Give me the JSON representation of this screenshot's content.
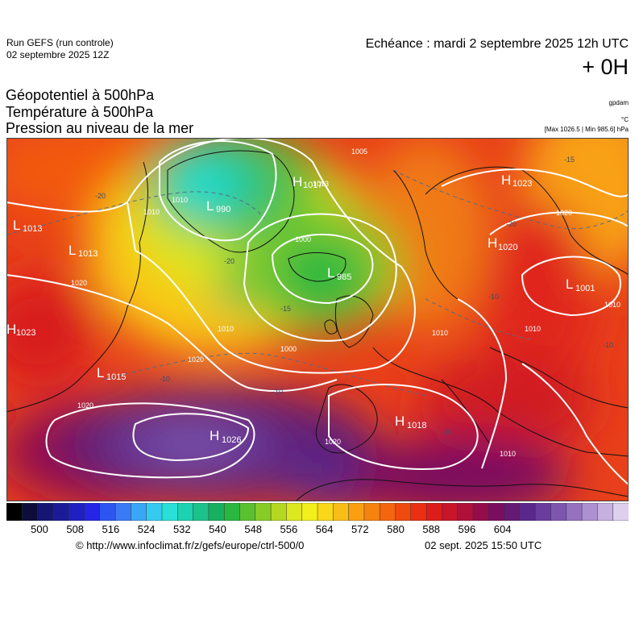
{
  "header": {
    "run_title": "Run GEFS (run controle)",
    "run_date": "02 septembre 2025 12Z",
    "echeance": "Echéance : mardi 2 septembre 2025 12h UTC",
    "offset": "+ 0H"
  },
  "parameters": {
    "line1": "Géopotentiel à 500hPa",
    "line2": "Température à 500hPa",
    "line3": "Pression au niveau de la mer"
  },
  "units": {
    "geopotential": "gpdam",
    "temperature": "°C",
    "minmax": "[Max 1026.5 | Min 985.6] hPa"
  },
  "map": {
    "pressure_centers": [
      {
        "type": "H",
        "value": "1017"
      },
      {
        "type": "H",
        "value": "1023"
      },
      {
        "type": "L",
        "value": "990"
      },
      {
        "type": "L",
        "value": "1013"
      },
      {
        "type": "L",
        "value": "1013"
      },
      {
        "type": "L",
        "value": "985"
      },
      {
        "type": "H",
        "value": "1020"
      },
      {
        "type": "L",
        "value": "1001"
      },
      {
        "type": "H",
        "value": "1023"
      },
      {
        "type": "L",
        "value": "1015"
      },
      {
        "type": "H",
        "value": "1018"
      },
      {
        "type": "H",
        "value": "1026"
      }
    ],
    "isobar_labels": [
      "1005",
      "1013",
      "1020",
      "1000",
      "1010",
      "1020",
      "1010",
      "1010",
      "1000",
      "1020",
      "1020",
      "1010",
      "1010",
      "1010",
      "1010",
      "1020"
    ],
    "temperature_labels": [
      "-20",
      "-20",
      "-20",
      "-15",
      "-15",
      "-10",
      "-10",
      "-10",
      "-10",
      "-10"
    ]
  },
  "colorbar": {
    "colors": [
      "#000000",
      "#0d0d3a",
      "#151573",
      "#1b1b99",
      "#1f1fc2",
      "#2525e6",
      "#2d55f0",
      "#3a7af5",
      "#3aa6f6",
      "#35cbf0",
      "#28e0d8",
      "#1dd2b0",
      "#1cc28a",
      "#18b060",
      "#28b840",
      "#5ac030",
      "#88cc28",
      "#b4d820",
      "#dce820",
      "#f2ef1a",
      "#f8d818",
      "#f8be16",
      "#f8a012",
      "#f68210",
      "#f2660e",
      "#ef4a0f",
      "#ea2f12",
      "#dc1d1a",
      "#c81527",
      "#b0103a",
      "#950c4b",
      "#7a0d5e",
      "#641a72",
      "#5a288a",
      "#6a3c9c",
      "#7c56ae",
      "#9472c0",
      "#ac90d0",
      "#c6b0e0",
      "#ddd0ee"
    ],
    "ticks": [
      "500",
      "508",
      "516",
      "524",
      "532",
      "540",
      "548",
      "556",
      "564",
      "572",
      "580",
      "588",
      "596",
      "604"
    ]
  },
  "footer": {
    "url": "© http://www.infoclimat.fr/z/gefs/europe/ctrl-500/0",
    "date": "02 sept. 2025 15:50 UTC"
  }
}
